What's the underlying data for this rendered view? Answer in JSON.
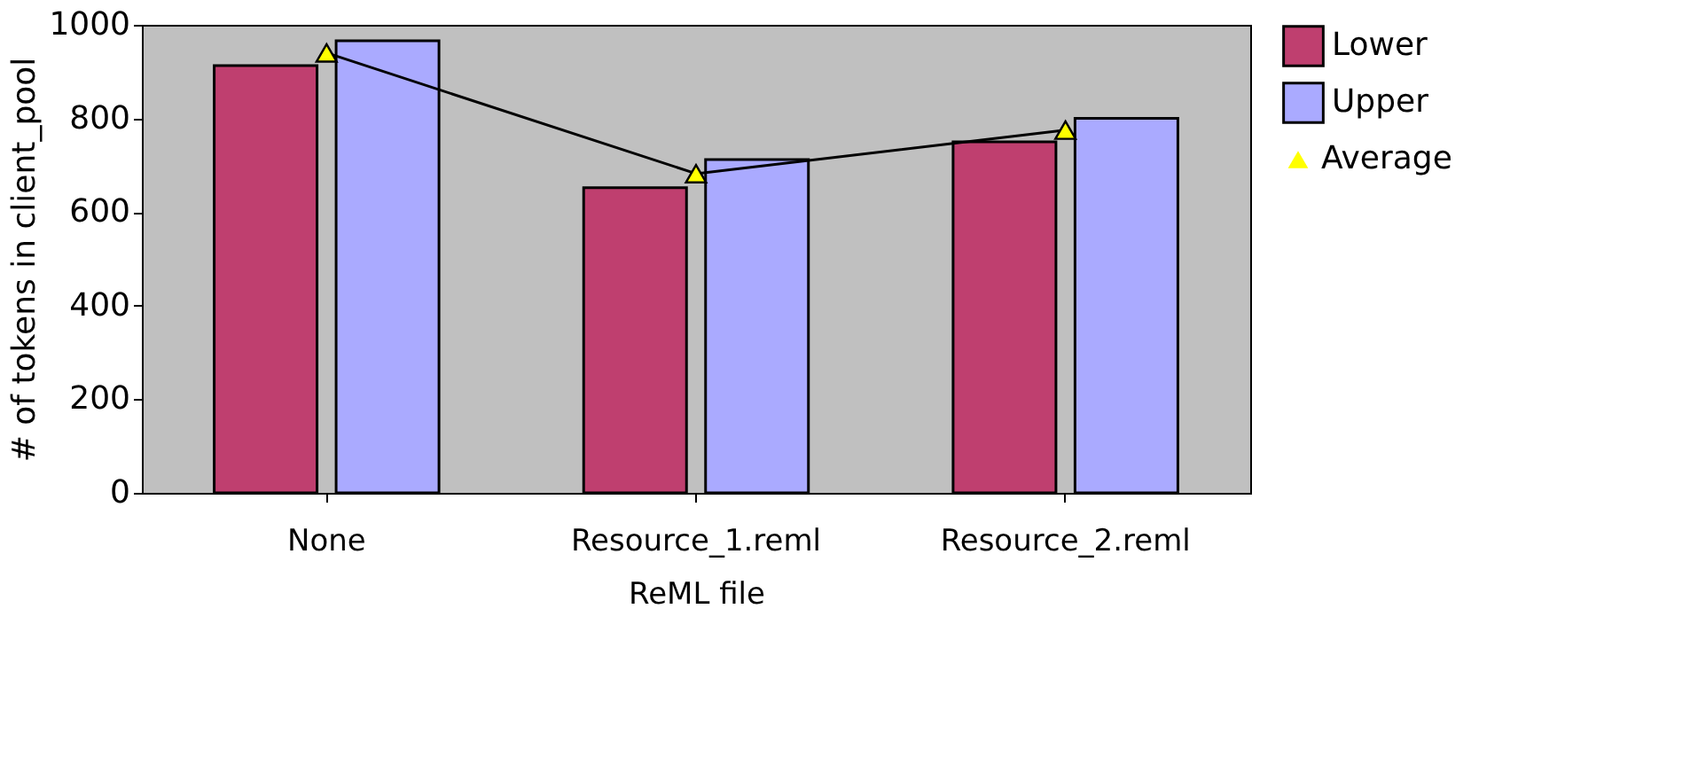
{
  "chart_data": {
    "type": "bar",
    "xlabel": "ReML file",
    "ylabel": "# of tokens in  client_pool",
    "categories": [
      "None",
      "Resource_1.reml",
      "Resource_2.reml"
    ],
    "series": [
      {
        "name": "Lower",
        "color": "#bf3f6f",
        "values": [
          913,
          652,
          750
        ]
      },
      {
        "name": "Upper",
        "color": "#aaaaff",
        "values": [
          966,
          712,
          800
        ]
      },
      {
        "name": "Average",
        "type": "line",
        "color": "#000000",
        "marker": "triangle",
        "values": [
          940,
          682,
          775
        ]
      }
    ],
    "ylim": [
      0,
      1000
    ],
    "yticks": [
      0,
      200,
      400,
      600,
      800,
      1000
    ],
    "grid": false,
    "legend": "right"
  }
}
